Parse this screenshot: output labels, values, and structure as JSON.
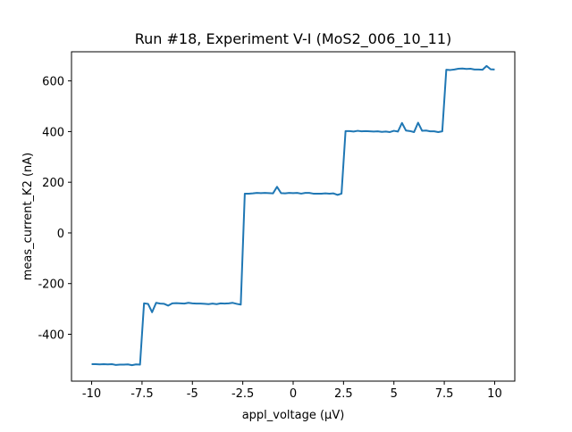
{
  "chart_data": {
    "type": "line",
    "title": "Run #18, Experiment V-I (MoS2_006_10_11)",
    "xlabel": "appl_voltage (µV)",
    "ylabel": "meas_current_K2 (nA)",
    "xlim": [
      -11,
      11
    ],
    "ylim": [
      -585,
      715
    ],
    "x_ticks": [
      -10,
      -7.5,
      -5,
      -2.5,
      0,
      2.5,
      5,
      7.5,
      10
    ],
    "x_tick_labels": [
      "-10",
      "-7.5",
      "-5",
      "-2.5",
      "0",
      "2.5",
      "5",
      "7.5",
      "10"
    ],
    "y_ticks": [
      -400,
      -200,
      0,
      200,
      400,
      600
    ],
    "y_tick_labels": [
      "-400",
      "-200",
      "0",
      "200",
      "400",
      "600"
    ],
    "grid": false,
    "line_color": "#1f77b4",
    "series": [
      {
        "x": [
          -10,
          -9.8,
          -9.6,
          -9.4,
          -9.2,
          -9.0,
          -8.8,
          -8.6,
          -8.4,
          -8.2,
          -8.0,
          -7.8,
          -7.6,
          -7.4,
          -7.2,
          -7.0,
          -6.8,
          -6.6,
          -6.4,
          -6.2,
          -6.0,
          -5.8,
          -5.6,
          -5.4,
          -5.2,
          -5.0,
          -4.8,
          -4.6,
          -4.4,
          -4.2,
          -4.0,
          -3.8,
          -3.6,
          -3.4,
          -3.2,
          -3.0,
          -2.8,
          -2.6,
          -2.4,
          -2.2,
          -2.0,
          -1.8,
          -1.6,
          -1.4,
          -1.2,
          -1.0,
          -0.8,
          -0.6,
          -0.4,
          -0.2,
          0.0,
          0.2,
          0.4,
          0.6,
          0.8,
          1.0,
          1.2,
          1.4,
          1.6,
          1.8,
          2.0,
          2.2,
          2.4,
          2.6,
          2.8,
          3.0,
          3.2,
          3.4,
          3.6,
          3.8,
          4.0,
          4.2,
          4.4,
          4.6,
          4.8,
          5.0,
          5.2,
          5.4,
          5.6,
          5.8,
          6.0,
          6.2,
          6.4,
          6.6,
          6.8,
          7.0,
          7.2,
          7.4,
          7.6,
          7.8,
          8.0,
          8.2,
          8.4,
          8.6,
          8.8,
          9.0,
          9.2,
          9.4,
          9.6,
          9.8,
          10.0
        ],
        "y": [
          -518,
          -518,
          -519,
          -518,
          -519,
          -518,
          -521,
          -520,
          -520,
          -519,
          -522,
          -519,
          -520,
          -278,
          -280,
          -313,
          -276,
          -279,
          -280,
          -287,
          -278,
          -277,
          -278,
          -279,
          -276,
          -278,
          -279,
          -279,
          -280,
          -281,
          -279,
          -281,
          -278,
          -279,
          -278,
          -276,
          -280,
          -283,
          155,
          155,
          156,
          158,
          157,
          158,
          157,
          156,
          182,
          157,
          156,
          158,
          157,
          158,
          155,
          158,
          158,
          155,
          155,
          155,
          156,
          155,
          156,
          150,
          155,
          402,
          402,
          400,
          403,
          401,
          402,
          401,
          400,
          401,
          399,
          400,
          398,
          403,
          400,
          434,
          404,
          402,
          398,
          435,
          403,
          404,
          401,
          401,
          398,
          401,
          644,
          643,
          645,
          648,
          649,
          647,
          648,
          645,
          645,
          644,
          659,
          646,
          645
        ]
      }
    ]
  }
}
